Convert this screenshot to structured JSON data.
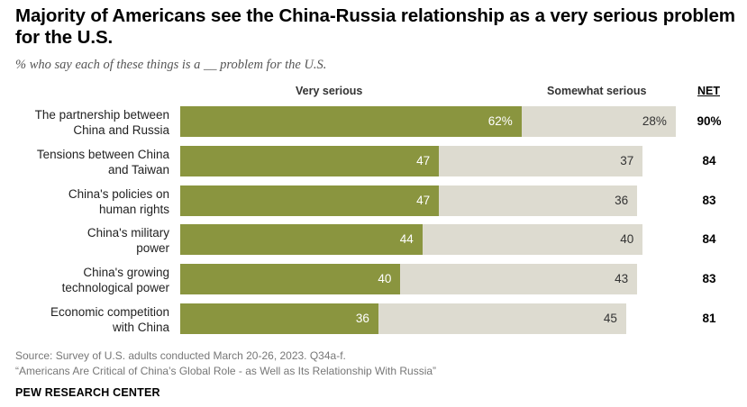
{
  "chart_data": {
    "type": "bar",
    "orientation": "horizontal",
    "stacked": true,
    "title": "Majority of Americans see the China-Russia relationship as a very serious problem for the U.S.",
    "subtitle": "% who say each of these things is a __ problem for the U.S.",
    "categories": [
      [
        "The partnership between",
        "China and Russia"
      ],
      [
        "Tensions between China",
        "and Taiwan"
      ],
      [
        "China's policies on",
        "human rights"
      ],
      [
        "China's military",
        "power"
      ],
      [
        "China's growing",
        "technological power"
      ],
      [
        "Economic competition",
        "with China"
      ]
    ],
    "series": [
      {
        "name": "Very serious",
        "values": [
          62,
          47,
          47,
          44,
          40,
          36
        ],
        "labels": [
          "62%",
          "47",
          "47",
          "44",
          "40",
          "36"
        ],
        "color": "#8a953f"
      },
      {
        "name": "Somewhat serious",
        "values": [
          28,
          37,
          36,
          40,
          43,
          45
        ],
        "labels": [
          "28%",
          "37",
          "36",
          "40",
          "43",
          "45"
        ],
        "color": "#dddbd0"
      }
    ],
    "net_header": "NET",
    "net": [
      "90%",
      "84",
      "83",
      "84",
      "83",
      "81"
    ],
    "xlim": [
      0,
      100
    ]
  },
  "source": {
    "line1": "Source: Survey of U.S. adults conducted March 20-26, 2023. Q34a-f.",
    "line2": "“Americans Are Critical of China’s Global Role - as Well as Its Relationship With Russia”"
  },
  "brand": "PEW RESEARCH CENTER"
}
